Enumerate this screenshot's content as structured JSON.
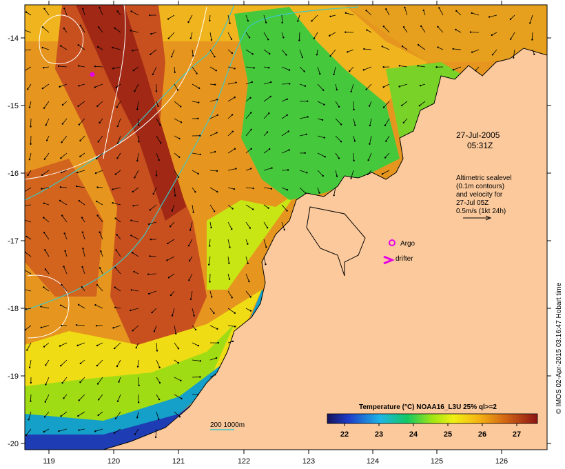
{
  "map": {
    "title_date": "27-Jul-2005",
    "title_time": "05:31Z",
    "altimetry_lines": [
      "Altimetric sealevel",
      "(0.1m contours)",
      "and velocity for",
      "27-Jul 05Z",
      "0.5m/s (1kt 24h)"
    ],
    "argo_label": "Argo",
    "drifter_label": "drifter",
    "bathy_label": "200  1000m",
    "colorbar": {
      "title": "Temperature (°C) NOAA16_L3U 25% ql>=2",
      "range": [
        21.5,
        27.6
      ],
      "ticks": [
        "22",
        "23",
        "24",
        "25",
        "26",
        "27"
      ]
    },
    "lon_ticks": [
      "119",
      "120",
      "121",
      "122",
      "123",
      "124",
      "125",
      "126"
    ],
    "lat_ticks": [
      "-14",
      "-15",
      "-16",
      "-17",
      "-18",
      "-19",
      "-20"
    ],
    "credit": "© IMOS 02-Apr-2015 03:16:47 Hobart time",
    "colors": {
      "land": "#fbc99c",
      "contour": "#ffffff",
      "bathymetry": "#3cc8c8",
      "marker": "#e600e6"
    }
  }
}
